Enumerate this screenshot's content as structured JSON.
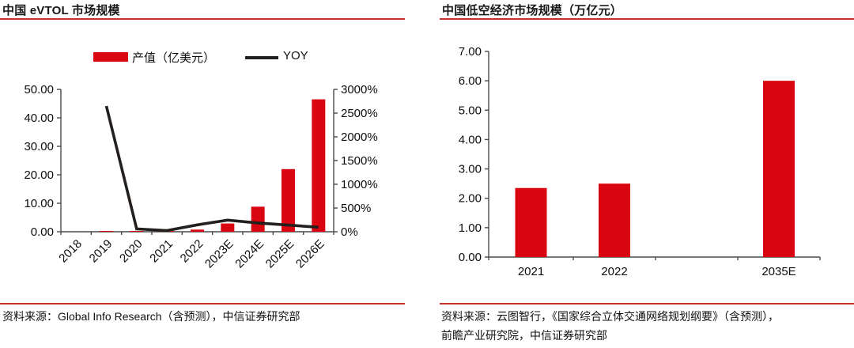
{
  "page": {
    "accent_red": "#D90511",
    "rule_red": "#C9302C",
    "line_black": "#231F1D"
  },
  "left_panel": {
    "title": "中国 eVTOL 市场规模",
    "legend": {
      "bar_label": "产值（亿美元）",
      "line_label": "YOY"
    },
    "source": "资料来源：Global Info Research（含预测），中信证券研究部"
  },
  "right_panel": {
    "title": "中国低空经济市场规模（万亿元）",
    "source_line1": "资料来源：云图智行，《国家综合立体交通网络规划纲要》（含预测），",
    "source_line2": "前瞻产业研究院，中信证券研究部"
  },
  "chart_data": [
    {
      "type": "bar",
      "title": "中国 eVTOL 市场规模",
      "categories": [
        "2018",
        "2019",
        "2020",
        "2021",
        "2022",
        "2023E",
        "2024E",
        "2025E",
        "2026E"
      ],
      "series": [
        {
          "name": "产值（亿美元）",
          "type": "bar",
          "axis": "left",
          "values": [
            0,
            0.15,
            0.25,
            0.3,
            0.75,
            2.9,
            8.8,
            22,
            46.5
          ]
        },
        {
          "name": "YOY",
          "type": "line",
          "axis": "right",
          "unit": "%",
          "values": [
            null,
            2650,
            60,
            25,
            145,
            245,
            185,
            140,
            95
          ]
        }
      ],
      "left_axis": {
        "min": 0,
        "max": 50,
        "tick_labels": [
          "0.00",
          "10.00",
          "20.00",
          "30.00",
          "40.00",
          "50.00"
        ]
      },
      "right_axis": {
        "min": 0,
        "max": 3000,
        "tick_labels": [
          "0%",
          "500%",
          "1000%",
          "1500%",
          "2000%",
          "2500%",
          "3000%"
        ]
      },
      "legend_position": "top",
      "grid": false
    },
    {
      "type": "bar",
      "title": "中国低空经济市场规模（万亿元）",
      "categories": [
        "2021",
        "2022",
        "",
        "2035E"
      ],
      "values": [
        2.35,
        2.5,
        null,
        6.0
      ],
      "ylim": [
        0,
        7
      ],
      "y_tick_labels": [
        "0.00",
        "1.00",
        "2.00",
        "3.00",
        "4.00",
        "5.00",
        "6.00",
        "7.00"
      ],
      "grid": false
    }
  ]
}
